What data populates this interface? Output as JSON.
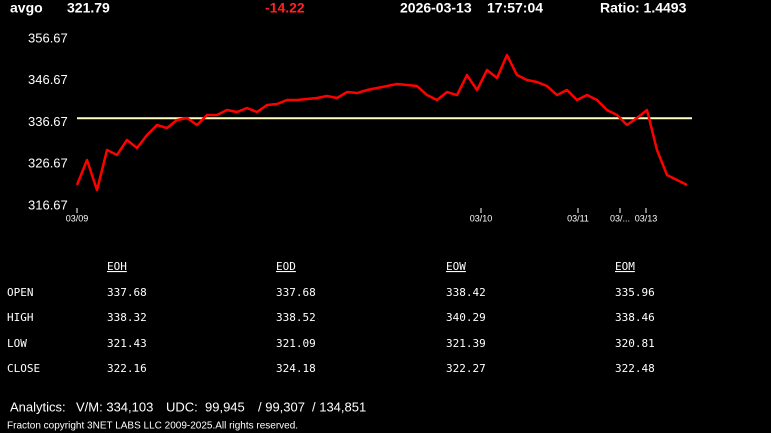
{
  "header": {
    "symbol": "avgo",
    "price": "321.79",
    "change": "-14.22",
    "date": "2026-03-13",
    "time": "17:57:04",
    "ratio": "Ratio: 1.4493"
  },
  "chart_data": {
    "type": "line",
    "color": "#ff0000",
    "reference_line": 337.68,
    "reference_color": "#ffffc0",
    "x": [
      0,
      10,
      20,
      30,
      40,
      50,
      60,
      70,
      80,
      90,
      100,
      110,
      120,
      130,
      140,
      150,
      160,
      170,
      180,
      190,
      200,
      210,
      220,
      230,
      240,
      250,
      260,
      270,
      280,
      290,
      300,
      310,
      320,
      330,
      340,
      350,
      360,
      370,
      380,
      390,
      400,
      410,
      420,
      430,
      440,
      450,
      460,
      470,
      480,
      490,
      500,
      510,
      520,
      530,
      540,
      550,
      560,
      570,
      580,
      590,
      600,
      610
    ],
    "values": [
      321.7,
      327.69,
      320.5,
      330.08,
      328.89,
      332.48,
      330.56,
      333.67,
      336.07,
      335.35,
      337.27,
      337.75,
      336.07,
      338.46,
      338.46,
      339.66,
      339.18,
      340.14,
      339.18,
      340.86,
      341.1,
      342.06,
      342.06,
      342.3,
      342.54,
      343.02,
      342.54,
      343.97,
      343.73,
      344.45,
      344.93,
      345.41,
      345.89,
      345.65,
      345.41,
      343.25,
      342.06,
      343.97,
      343.25,
      348.04,
      344.45,
      349.24,
      347.33,
      352.83,
      348.04,
      346.85,
      346.37,
      345.41,
      343.25,
      344.45,
      342.06,
      343.25,
      342.06,
      339.66,
      338.46,
      336.07,
      337.75,
      339.66,
      330.08,
      324.09,
      322.9,
      321.7
    ],
    "xlim": [
      0,
      615
    ],
    "xticks": [
      {
        "value": 0,
        "label": "03/09"
      },
      {
        "value": 404,
        "label": "03/10"
      },
      {
        "value": 501,
        "label": "03/11"
      },
      {
        "value": 543,
        "label": "03/..."
      },
      {
        "value": 569,
        "label": "03/13"
      }
    ],
    "ylim": [
      316.67,
      356.67
    ],
    "yticks": [
      316.67,
      326.67,
      336.67,
      346.67,
      356.67
    ]
  },
  "table": {
    "columns": [
      "EOH",
      "EOD",
      "EOW",
      "EOM"
    ],
    "rows": [
      [
        "OPEN",
        "337.68",
        "337.68",
        "338.42",
        "335.96"
      ],
      [
        "HIGH",
        "338.32",
        "338.52",
        "340.29",
        "338.46"
      ],
      [
        "LOW",
        "321.43",
        "321.09",
        "321.39",
        "320.81"
      ],
      [
        "CLOSE",
        "322.16",
        "324.18",
        "322.27",
        "322.48"
      ]
    ]
  },
  "footer": {
    "analytics": "Analytics:",
    "vm": "V/M: 334,103",
    "udc": "UDC:  99,945",
    "udc2": "/ 99,307",
    "udc3": "/ 134,851",
    "copyright": "Fracton copyright 3NET LABS LLC 2009-2025.All rights reserved."
  }
}
